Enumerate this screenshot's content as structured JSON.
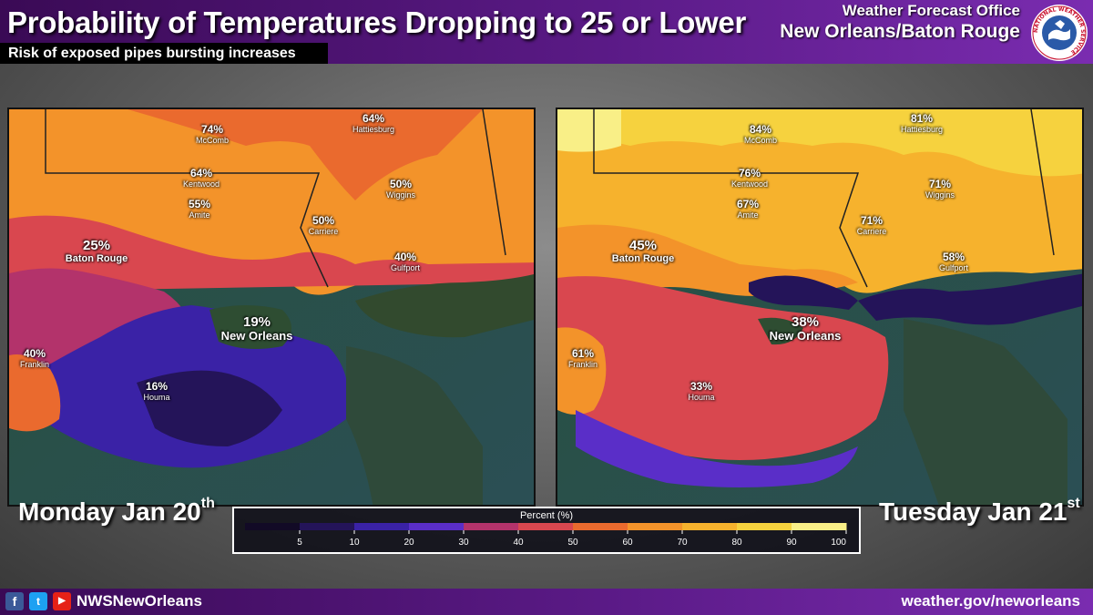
{
  "header": {
    "title": "Probability of Temperatures Dropping to 25 or Lower",
    "subtitle": "Risk of exposed pipes bursting increases",
    "office_line1": "Weather Forecast Office",
    "office_line2": "New Orleans/Baton Rouge",
    "logo_text": "NATIONAL WEATHER SERVICE",
    "logo_icon": "nws-logo-icon"
  },
  "colors": {
    "brand_purple": "#5a1a86",
    "scale": [
      "#120a26",
      "#241459",
      "#3a22a6",
      "#5a2ec8",
      "#b3336b",
      "#d9474f",
      "#ea6a2e",
      "#f3932a",
      "#f6b22d",
      "#f6d23e",
      "#f9ef87"
    ]
  },
  "maps": [
    {
      "day": "Monday Jan 20",
      "day_suffix": "th",
      "cities": [
        {
          "pct": "74%",
          "name": "McComb"
        },
        {
          "pct": "64%",
          "name": "Hattiesburg"
        },
        {
          "pct": "64%",
          "name": "Kentwood"
        },
        {
          "pct": "55%",
          "name": "Amite"
        },
        {
          "pct": "50%",
          "name": "Carriere"
        },
        {
          "pct": "50%",
          "name": "Wiggins"
        },
        {
          "pct": "25%",
          "name": "Baton Rouge"
        },
        {
          "pct": "40%",
          "name": "Gulfport"
        },
        {
          "pct": "19%",
          "name": "New Orleans"
        },
        {
          "pct": "40%",
          "name": "Franklin"
        },
        {
          "pct": "16%",
          "name": "Houma"
        }
      ]
    },
    {
      "day": "Tuesday Jan 21",
      "day_suffix": "st",
      "cities": [
        {
          "pct": "84%",
          "name": "McComb"
        },
        {
          "pct": "81%",
          "name": "Hattiesburg"
        },
        {
          "pct": "76%",
          "name": "Kentwood"
        },
        {
          "pct": "67%",
          "name": "Amite"
        },
        {
          "pct": "71%",
          "name": "Carriere"
        },
        {
          "pct": "71%",
          "name": "Wiggins"
        },
        {
          "pct": "45%",
          "name": "Baton Rouge"
        },
        {
          "pct": "58%",
          "name": "Gulfport"
        },
        {
          "pct": "38%",
          "name": "New Orleans"
        },
        {
          "pct": "61%",
          "name": "Franklin"
        },
        {
          "pct": "33%",
          "name": "Houma"
        }
      ]
    }
  ],
  "legend": {
    "title": "Percent (%)",
    "ticks": [
      "5",
      "10",
      "20",
      "30",
      "40",
      "50",
      "60",
      "70",
      "80",
      "90",
      "100"
    ]
  },
  "footer": {
    "facebook_icon": "f",
    "twitter_icon": "t",
    "youtube_icon": "▶",
    "handle": "NWSNewOrleans",
    "website": "weather.gov/neworleans"
  }
}
